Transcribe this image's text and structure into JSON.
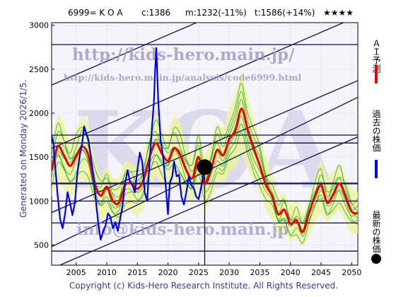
{
  "header": {
    "code_name": "6999= K O A",
    "current": "c:1386",
    "mid": "m:1232(-11%)",
    "target": "t:1586(+14%)",
    "stars": "★★★★"
  },
  "generated": "Generated on Monday 2026/1/5.",
  "copyright": "Copyright (c) Kids-Hero Research Institute. All Rights Reserved.",
  "watermarks": {
    "url_main": "http://kids-hero.main.jp/",
    "url_analysis": "http://kids-hero.main.jp/analysis/code6999.html",
    "email": "info@kids-hero.main.jp",
    "big": "KOA"
  },
  "legend": {
    "ai_forecast": "ＡＩ予測",
    "past_price": "過去の株価",
    "latest_price": "最新の株価"
  },
  "colors": {
    "ai": "#ee0000",
    "past": "#0000ee",
    "latest": "#000000",
    "sim_line": "#22aa22",
    "sim_fill": "#eef2a0",
    "channel": "#1c1c5a"
  },
  "chart_data": {
    "type": "line",
    "xlim": [
      2001,
      2051
    ],
    "ylim": [
      270,
      3030
    ],
    "x_ticks": [
      2005,
      2010,
      2015,
      2020,
      2025,
      2030,
      2035,
      2040,
      2045,
      2050
    ],
    "y_ticks": [
      500,
      1000,
      1500,
      2000,
      2500,
      3000
    ],
    "grid": true,
    "now_marker": {
      "x": 2026.0,
      "y": 1386
    },
    "horizontal_levels": [
      2780,
      1750,
      1660,
      1200,
      1000,
      750,
      430
    ],
    "channel_lines": [
      {
        "x1": 2001,
        "y1": 2320,
        "x2": 2051,
        "y2": 3820
      },
      {
        "x1": 2001,
        "y1": 1600,
        "x2": 2051,
        "y2": 3100
      },
      {
        "x1": 2001,
        "y1": 870,
        "x2": 2051,
        "y2": 2370
      },
      {
        "x1": 2001,
        "y1": 480,
        "x2": 2051,
        "y2": 2180
      },
      {
        "x1": 2001,
        "y1": 230,
        "x2": 2051,
        "y2": 1730
      }
    ],
    "series": [
      {
        "name": "過去の株価",
        "points": [
          [
            2001.0,
            1750
          ],
          [
            2001.3,
            1650
          ],
          [
            2001.6,
            1380
          ],
          [
            2002.0,
            1050
          ],
          [
            2002.4,
            790
          ],
          [
            2002.8,
            690
          ],
          [
            2003.2,
            860
          ],
          [
            2003.6,
            1100
          ],
          [
            2004.0,
            980
          ],
          [
            2004.4,
            840
          ],
          [
            2004.8,
            980
          ],
          [
            2005.2,
            1320
          ],
          [
            2005.6,
            1520
          ],
          [
            2006.0,
            1660
          ],
          [
            2006.3,
            1850
          ],
          [
            2006.7,
            1760
          ],
          [
            2007.0,
            1700
          ],
          [
            2007.4,
            1500
          ],
          [
            2007.8,
            1300
          ],
          [
            2008.2,
            1020
          ],
          [
            2008.6,
            760
          ],
          [
            2009.0,
            560
          ],
          [
            2009.4,
            650
          ],
          [
            2009.8,
            720
          ],
          [
            2010.2,
            860
          ],
          [
            2010.6,
            820
          ],
          [
            2011.0,
            690
          ],
          [
            2011.4,
            760
          ],
          [
            2011.8,
            660
          ],
          [
            2012.2,
            800
          ],
          [
            2012.6,
            960
          ],
          [
            2013.0,
            1200
          ],
          [
            2013.4,
            1350
          ],
          [
            2013.8,
            1220
          ],
          [
            2014.2,
            1180
          ],
          [
            2014.6,
            1100
          ],
          [
            2015.0,
            1350
          ],
          [
            2015.4,
            1550
          ],
          [
            2015.8,
            1440
          ],
          [
            2016.2,
            1100
          ],
          [
            2016.6,
            1000
          ],
          [
            2017.0,
            1450
          ],
          [
            2017.4,
            1850
          ],
          [
            2017.7,
            2120
          ],
          [
            2017.9,
            2500
          ],
          [
            2018.1,
            2740
          ],
          [
            2018.4,
            2150
          ],
          [
            2018.8,
            1700
          ],
          [
            2019.2,
            1500
          ],
          [
            2019.6,
            1200
          ],
          [
            2020.0,
            850
          ],
          [
            2020.3,
            1200
          ],
          [
            2020.7,
            1280
          ],
          [
            2021.0,
            1450
          ],
          [
            2021.4,
            1280
          ],
          [
            2021.8,
            1300
          ],
          [
            2022.2,
            1050
          ],
          [
            2022.6,
            960
          ],
          [
            2023.0,
            1100
          ],
          [
            2023.4,
            1280
          ],
          [
            2023.8,
            1180
          ],
          [
            2024.2,
            1150
          ],
          [
            2024.6,
            1050
          ],
          [
            2025.0,
            1020
          ],
          [
            2025.4,
            1150
          ],
          [
            2025.8,
            1300
          ],
          [
            2026.0,
            1386
          ]
        ]
      },
      {
        "name": "ＡＩ予測",
        "points": [
          [
            2001.0,
            1350
          ],
          [
            2002.0,
            1620
          ],
          [
            2003.0,
            1520
          ],
          [
            2004.0,
            1400
          ],
          [
            2005.0,
            1510
          ],
          [
            2006.0,
            1620
          ],
          [
            2007.0,
            1520
          ],
          [
            2008.0,
            1200
          ],
          [
            2009.0,
            1060
          ],
          [
            2010.0,
            1160
          ],
          [
            2011.0,
            1000
          ],
          [
            2012.0,
            980
          ],
          [
            2013.0,
            1180
          ],
          [
            2014.0,
            1200
          ],
          [
            2015.0,
            1140
          ],
          [
            2016.0,
            1240
          ],
          [
            2017.0,
            1500
          ],
          [
            2018.0,
            1660
          ],
          [
            2019.0,
            1540
          ],
          [
            2020.0,
            1460
          ],
          [
            2021.0,
            1600
          ],
          [
            2022.0,
            1520
          ],
          [
            2023.0,
            1350
          ],
          [
            2024.0,
            1260
          ],
          [
            2025.0,
            1500
          ],
          [
            2026.0,
            1200
          ],
          [
            2027.0,
            1350
          ],
          [
            2028.0,
            1580
          ],
          [
            2029.0,
            1520
          ],
          [
            2030.0,
            1700
          ],
          [
            2031.0,
            1800
          ],
          [
            2032.0,
            2050
          ],
          [
            2033.0,
            1820
          ],
          [
            2034.0,
            1600
          ],
          [
            2035.0,
            1400
          ],
          [
            2036.0,
            1180
          ],
          [
            2037.0,
            1060
          ],
          [
            2038.0,
            850
          ],
          [
            2039.0,
            900
          ],
          [
            2040.0,
            740
          ],
          [
            2041.0,
            780
          ],
          [
            2042.0,
            650
          ],
          [
            2043.0,
            860
          ],
          [
            2044.0,
            1050
          ],
          [
            2045.0,
            1180
          ],
          [
            2046.0,
            980
          ],
          [
            2047.0,
            1080
          ],
          [
            2048.0,
            1200
          ],
          [
            2049.0,
            1050
          ],
          [
            2050.0,
            880
          ],
          [
            2051.0,
            860
          ]
        ]
      }
    ]
  }
}
